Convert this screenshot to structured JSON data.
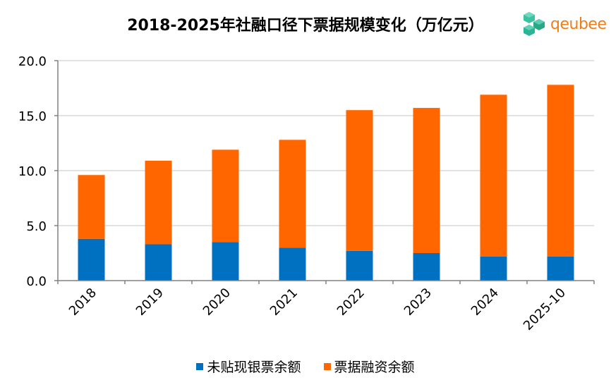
{
  "header": {
    "title": "2018-2025年社融口径下票据规模变化（万亿元）",
    "logo_text": "qeubee",
    "logo_icon": "cube-cluster-icon"
  },
  "colors": {
    "series_1": "#0070c0",
    "series_2": "#ff6600",
    "gridline": "#d9d9d9",
    "axis": "#808080",
    "logo_green": "#2bb596",
    "logo_orange": "#f07d1a"
  },
  "chart_data": {
    "type": "bar",
    "stacked": true,
    "title": "2018-2025年社融口径下票据规模变化（万亿元）",
    "xlabel": "",
    "ylabel": "",
    "ylim": [
      0,
      20
    ],
    "yticks": [
      "0.0",
      "5.0",
      "10.0",
      "15.0",
      "20.0"
    ],
    "ytick_values": [
      0,
      5,
      10,
      15,
      20
    ],
    "grid": true,
    "legend_position": "bottom",
    "categories": [
      "2018",
      "2019",
      "2020",
      "2021",
      "2022",
      "2023",
      "2024",
      "2025-10"
    ],
    "series": [
      {
        "name": "未贴现银票余额",
        "values": [
          3.8,
          3.3,
          3.5,
          3.0,
          2.7,
          2.5,
          2.2,
          2.2
        ]
      },
      {
        "name": "票据融资余额",
        "values": [
          5.8,
          7.6,
          8.4,
          9.8,
          12.8,
          13.2,
          14.7,
          15.6
        ]
      }
    ]
  }
}
